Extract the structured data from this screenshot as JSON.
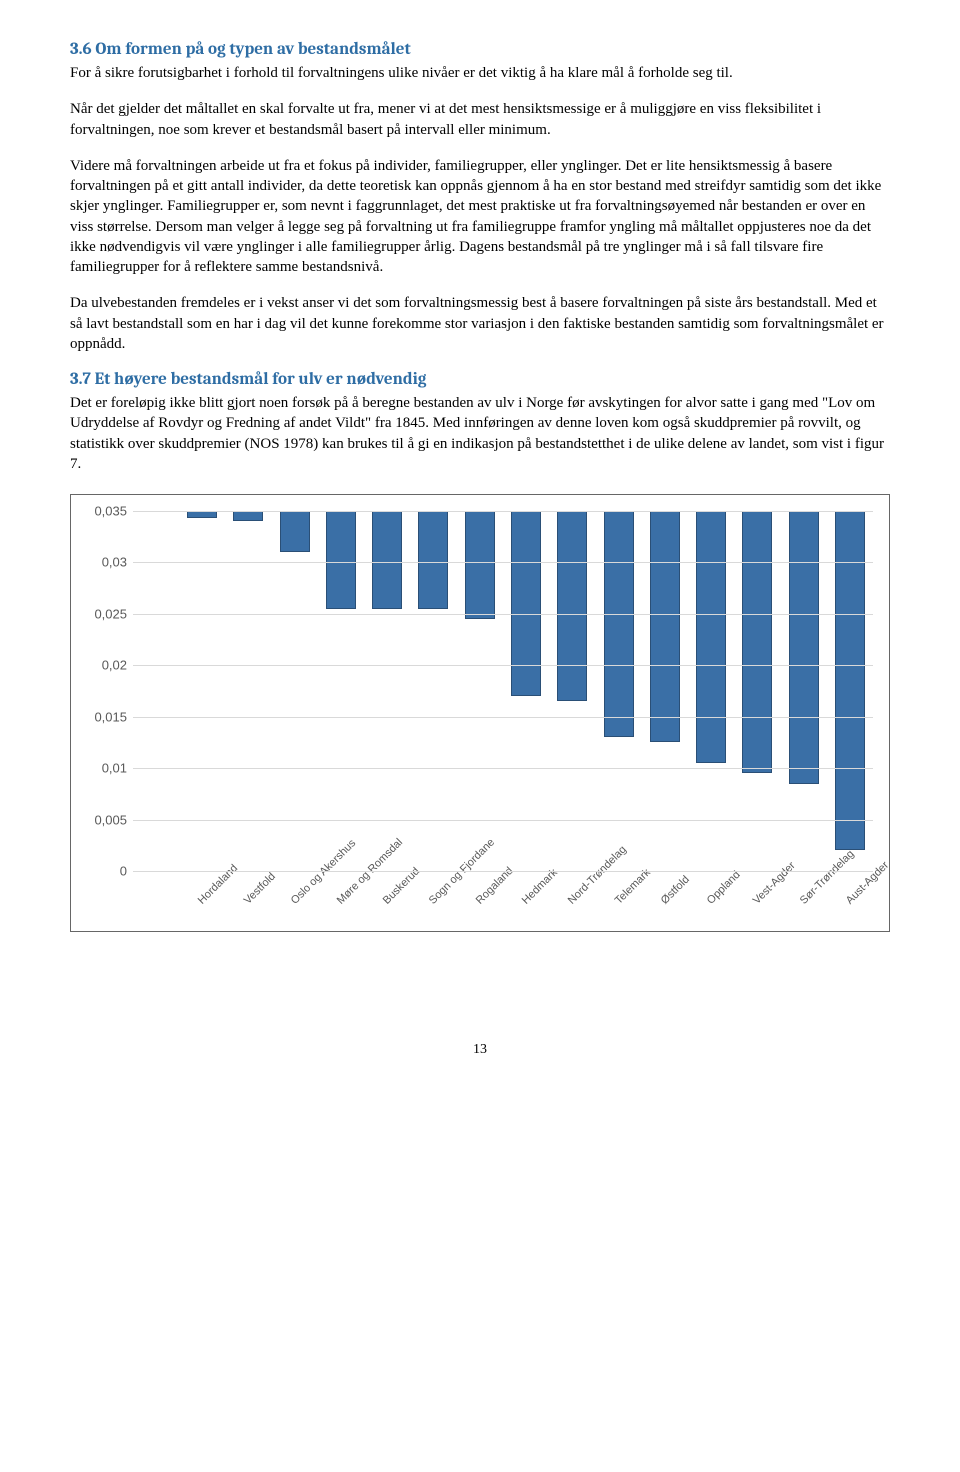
{
  "section1": {
    "heading": "3.6 Om formen på og typen av bestandsmålet",
    "para1": "For å sikre forutsigbarhet i forhold til forvaltningens ulike nivåer er det viktig å ha klare mål å forholde seg til.",
    "para2": "Når det gjelder det måltallet en skal forvalte ut fra, mener vi at det mest hensiktsmessige er å muliggjøre en viss fleksibilitet i forvaltningen, noe som krever et bestandsmål basert på intervall eller minimum.",
    "para3": "Videre må forvaltningen arbeide ut fra et fokus på individer, familiegrupper, eller ynglinger. Det er lite hensiktsmessig å basere forvaltningen på et gitt antall individer, da dette teoretisk kan oppnås gjennom å ha en stor bestand med streifdyr samtidig som det ikke skjer ynglinger. Familiegrupper er, som nevnt i faggrunnlaget, det mest praktiske ut fra forvaltningsøyemed når bestanden er over en viss størrelse. Dersom man velger å legge seg på forvaltning ut fra familiegruppe framfor yngling må måltallet oppjusteres noe da det ikke nødvendigvis vil være ynglinger i alle familiegrupper årlig. Dagens bestandsmål på tre ynglinger må i så fall tilsvare fire familiegrupper for å reflektere samme bestandsnivå.",
    "para4": "Da ulvebestanden fremdeles er i vekst anser vi det som forvaltningsmessig best å basere forvaltningen på siste års bestandstall. Med et så lavt bestandstall som en har i dag vil det kunne forekomme stor variasjon i den faktiske bestanden samtidig som forvaltningsmålet er oppnådd."
  },
  "section2": {
    "heading": "3.7 Et høyere bestandsmål for ulv er nødvendig",
    "para1": "Det er foreløpig ikke blitt gjort noen forsøk på å beregne bestanden av ulv i Norge før avskytingen for alvor satte i gang med \"Lov om Udryddelse af Rovdyr og Fredning af andet Vildt\" fra 1845. Med innføringen av denne loven kom også skuddpremier på rovvilt, og statistikk over skuddpremier (NOS 1978) kan brukes til å gi en indikasjon på bestandstetthet i de ulike delene av landet, som vist i figur 7."
  },
  "chart": {
    "ymax": 0.035,
    "ytick_step": 0.005,
    "yticks": [
      "0",
      "0,005",
      "0,01",
      "0,015",
      "0,02",
      "0,025",
      "0,03",
      "0,035"
    ],
    "bar_color": "#3a6fa6",
    "bar_border": "#2a4f76",
    "grid_color": "#d9d9d9",
    "categories": [
      "Hordaland",
      "Vestfold",
      "Oslo og Akershus",
      "Møre og Romsdal",
      "Buskerud",
      "Sogn og Fjordane",
      "Rogaland",
      "Hedmark",
      "Nord-Trøndelag",
      "Telemark",
      "Østfold",
      "Oppland",
      "Vest-Agder",
      "Sør-Trøndelag",
      "Aust-Agder"
    ],
    "values": [
      0.0007,
      0.001,
      0.004,
      0.0095,
      0.0095,
      0.0095,
      0.0105,
      0.018,
      0.0185,
      0.022,
      0.0225,
      0.0245,
      0.0255,
      0.0265,
      0.033
    ]
  },
  "page_number": "13"
}
